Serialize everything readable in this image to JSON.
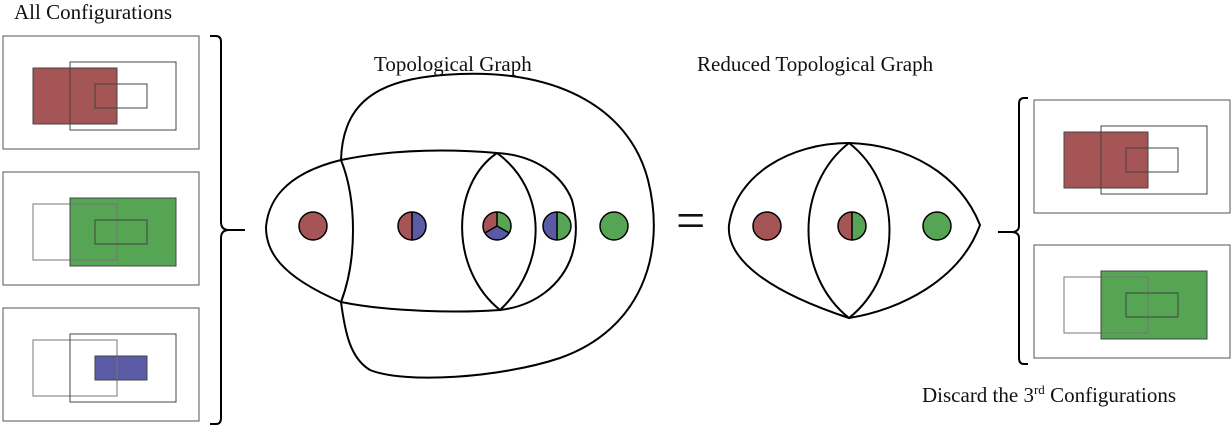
{
  "labels": {
    "all_configurations": "All Configurations",
    "topological_graph": "Topological Graph",
    "reduced_topological_graph": "Reduced Topological Graph",
    "discard_prefix": "Discard the 3",
    "discard_superscript": "rd",
    "discard_suffix": " Configurations",
    "equals": "="
  },
  "colors": {
    "red": "#a55555",
    "green": "#55a555",
    "blue": "#5a5aa5",
    "stroke": "#000000",
    "panel_border": "#555555",
    "rect_outline": "#777777"
  },
  "configurations": {
    "all": [
      "red",
      "green",
      "blue"
    ],
    "kept": [
      "red",
      "green"
    ]
  },
  "topological_graph": {
    "nodes": [
      {
        "regions": [
          "red"
        ]
      },
      {
        "regions": [
          "red",
          "blue"
        ]
      },
      {
        "regions": [
          "red",
          "green",
          "blue"
        ]
      },
      {
        "regions": [
          "blue",
          "green"
        ]
      },
      {
        "regions": [
          "green"
        ]
      }
    ]
  },
  "reduced_topological_graph": {
    "nodes": [
      {
        "regions": [
          "red"
        ]
      },
      {
        "regions": [
          "red",
          "green"
        ]
      },
      {
        "regions": [
          "green"
        ]
      }
    ]
  }
}
